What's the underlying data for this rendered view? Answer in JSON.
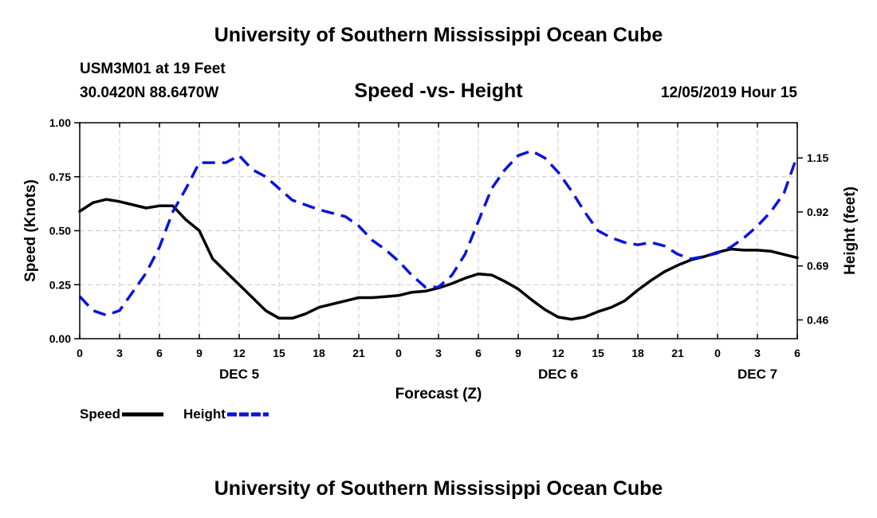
{
  "header": {
    "title": "University of Southern Mississippi Ocean Cube",
    "station": "USM3M01 at 19 Feet",
    "coords": "30.0420N 88.6470W",
    "chart_title": "Speed -vs- Height",
    "date": "12/05/2019 Hour 15"
  },
  "footer": {
    "title": "University of Southern Mississippi Ocean Cube"
  },
  "colors": {
    "speed": "#000000",
    "height": "#0a14d8",
    "grid": "#c8c8c8"
  },
  "chart_data": {
    "type": "line",
    "title": "Speed -vs- Height",
    "xlabel": "Forecast (Z)",
    "ylabel": "Speed (Knots)",
    "y2label": "Height (feet)",
    "x_range": [
      0,
      54
    ],
    "x_ticks": [
      0,
      3,
      6,
      9,
      12,
      15,
      18,
      21,
      24,
      27,
      30,
      33,
      36,
      39,
      42,
      45,
      48,
      51,
      54
    ],
    "x_tick_labels": [
      "0",
      "3",
      "6",
      "9",
      "12",
      "15",
      "18",
      "21",
      "0",
      "3",
      "6",
      "9",
      "12",
      "15",
      "18",
      "21",
      "0",
      "3",
      "6"
    ],
    "day_labels": [
      {
        "x": 12,
        "label": "DEC 5"
      },
      {
        "x": 36,
        "label": "DEC 6"
      },
      {
        "x": 51,
        "label": "DEC 7"
      }
    ],
    "ylim": [
      0,
      1
    ],
    "y_ticks": [
      0,
      0.25,
      0.5,
      0.75,
      1.0
    ],
    "y_tick_labels": [
      "0.00",
      "0.25",
      "0.50",
      "0.75",
      "1.00"
    ],
    "y2lim": [
      0.38,
      1.3
    ],
    "y2_ticks": [
      0.46,
      0.69,
      0.92,
      1.15
    ],
    "y2_tick_labels": [
      "0.46",
      "0.69",
      "0.92",
      "1.15"
    ],
    "grid": true,
    "series": [
      {
        "name": "Speed",
        "axis": "left",
        "style": "solid",
        "x": [
          0,
          1,
          2,
          3,
          4,
          5,
          6,
          7,
          8,
          9,
          10,
          11,
          12,
          13,
          14,
          15,
          16,
          17,
          18,
          19,
          20,
          21,
          22,
          23,
          24,
          25,
          26,
          27,
          28,
          29,
          30,
          31,
          32,
          33,
          34,
          35,
          36,
          37,
          38,
          39,
          40,
          41,
          42,
          43,
          44,
          45,
          46,
          47,
          48,
          49,
          50,
          51,
          52,
          53,
          54
        ],
        "values": [
          0.59,
          0.63,
          0.645,
          0.635,
          0.62,
          0.605,
          0.615,
          0.615,
          0.55,
          0.5,
          0.37,
          0.31,
          0.25,
          0.19,
          0.13,
          0.095,
          0.095,
          0.115,
          0.145,
          0.16,
          0.175,
          0.19,
          0.19,
          0.195,
          0.2,
          0.215,
          0.22,
          0.235,
          0.255,
          0.28,
          0.3,
          0.295,
          0.265,
          0.23,
          0.18,
          0.135,
          0.1,
          0.09,
          0.1,
          0.125,
          0.145,
          0.175,
          0.225,
          0.27,
          0.31,
          0.34,
          0.365,
          0.38,
          0.4,
          0.415,
          0.41,
          0.41,
          0.405,
          0.39,
          0.375
        ]
      },
      {
        "name": "Height",
        "axis": "right",
        "style": "dashed",
        "x": [
          0,
          1,
          2,
          3,
          4,
          5,
          6,
          7,
          8,
          9,
          10,
          11,
          12,
          13,
          14,
          15,
          16,
          17,
          18,
          19,
          20,
          21,
          22,
          23,
          24,
          25,
          26,
          27,
          28,
          29,
          30,
          31,
          32,
          33,
          34,
          35,
          36,
          37,
          38,
          39,
          40,
          41,
          42,
          43,
          44,
          45,
          46,
          47,
          48,
          49,
          50,
          51,
          52,
          53,
          54
        ],
        "values": [
          0.56,
          0.5,
          0.48,
          0.5,
          0.58,
          0.66,
          0.77,
          0.92,
          1.02,
          1.13,
          1.13,
          1.13,
          1.16,
          1.1,
          1.07,
          1.02,
          0.97,
          0.95,
          0.93,
          0.915,
          0.9,
          0.86,
          0.8,
          0.76,
          0.71,
          0.65,
          0.6,
          0.6,
          0.65,
          0.74,
          0.88,
          1.02,
          1.1,
          1.16,
          1.18,
          1.15,
          1.09,
          1.01,
          0.92,
          0.84,
          0.81,
          0.79,
          0.78,
          0.79,
          0.775,
          0.74,
          0.72,
          0.73,
          0.745,
          0.77,
          0.81,
          0.86,
          0.92,
          1.0,
          1.16
        ]
      }
    ],
    "legend": [
      {
        "label": "Speed",
        "style": "solid"
      },
      {
        "label": "Height",
        "style": "dashed"
      }
    ]
  }
}
